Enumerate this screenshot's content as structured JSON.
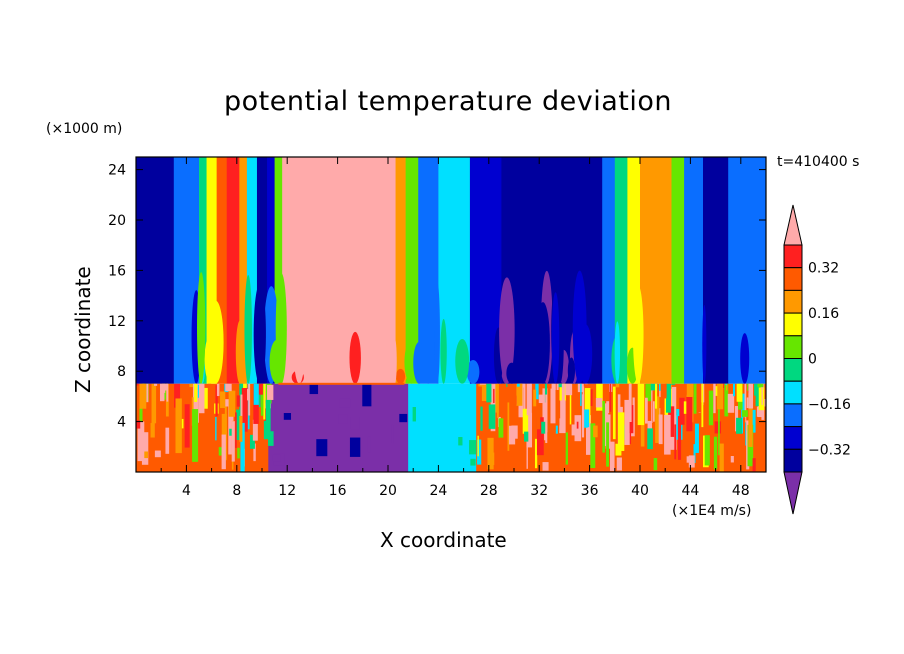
{
  "chart_data": {
    "type": "heatmap",
    "title": "potential temperature deviation",
    "xlabel": "X coordinate",
    "ylabel": "Z coordinate",
    "x_unit_label": "(×1E4 m/s)",
    "y_unit_label": "(×1000 m)",
    "time_label": "t=410400 s",
    "xlim": [
      0,
      50
    ],
    "ylim": [
      0,
      25
    ],
    "x_ticks": [
      4,
      8,
      12,
      16,
      20,
      24,
      28,
      32,
      36,
      40,
      44,
      48
    ],
    "y_ticks": [
      4,
      8,
      12,
      16,
      20,
      24
    ],
    "colorbar": {
      "levels": [
        -0.4,
        -0.32,
        -0.24,
        -0.16,
        -0.08,
        0,
        0.08,
        0.16,
        0.24,
        0.32,
        0.4
      ],
      "tick_labels": [
        "0.32",
        "0.16",
        "0",
        "−0.16",
        "−0.32"
      ],
      "tick_values": [
        0.32,
        0.16,
        0,
        -0.16,
        -0.32
      ],
      "colors": [
        "#7b2fa8",
        "#00009e",
        "#0000d0",
        "#0a6eff",
        "#00e0ff",
        "#00d880",
        "#66e600",
        "#ffff00",
        "#ff9900",
        "#ff5a00",
        "#ff2020",
        "#ffaaaa"
      ]
    },
    "upper_layer_columns": [
      {
        "x0": 0.0,
        "x1": 3.0,
        "v": -0.36
      },
      {
        "x0": 3.0,
        "x1": 5.0,
        "v": -0.2
      },
      {
        "x0": 5.0,
        "x1": 5.6,
        "v": -0.06
      },
      {
        "x0": 5.6,
        "x1": 6.4,
        "v": 0.12
      },
      {
        "x0": 6.4,
        "x1": 7.2,
        "v": 0.3
      },
      {
        "x0": 7.2,
        "x1": 8.2,
        "v": 0.36
      },
      {
        "x0": 8.2,
        "x1": 8.8,
        "v": 0.2
      },
      {
        "x0": 8.8,
        "x1": 9.6,
        "v": -0.1
      },
      {
        "x0": 9.6,
        "x1": 10.4,
        "v": -0.36
      },
      {
        "x0": 10.4,
        "x1": 11.0,
        "v": -0.26
      },
      {
        "x0": 11.0,
        "x1": 11.6,
        "v": 0.06
      },
      {
        "x0": 11.6,
        "x1": 20.6,
        "v": 0.45
      },
      {
        "x0": 20.6,
        "x1": 21.4,
        "v": 0.2
      },
      {
        "x0": 21.4,
        "x1": 22.4,
        "v": 0.0
      },
      {
        "x0": 22.4,
        "x1": 24.0,
        "v": -0.2
      },
      {
        "x0": 24.0,
        "x1": 26.5,
        "v": -0.1
      },
      {
        "x0": 26.5,
        "x1": 29.0,
        "v": -0.3
      },
      {
        "x0": 29.0,
        "x1": 37.0,
        "v": -0.37
      },
      {
        "x0": 37.0,
        "x1": 38.0,
        "v": -0.2
      },
      {
        "x0": 38.0,
        "x1": 39.0,
        "v": -0.04
      },
      {
        "x0": 39.0,
        "x1": 40.0,
        "v": 0.1
      },
      {
        "x0": 40.0,
        "x1": 42.5,
        "v": 0.18
      },
      {
        "x0": 42.5,
        "x1": 43.5,
        "v": 0.02
      },
      {
        "x0": 43.5,
        "x1": 45.0,
        "v": -0.2
      },
      {
        "x0": 45.0,
        "x1": 47.0,
        "v": -0.36
      },
      {
        "x0": 47.0,
        "x1": 50.0,
        "v": -0.2
      }
    ],
    "lower_layer_segments": [
      {
        "x0": 0.0,
        "x1": 10.5,
        "v": 0.3
      },
      {
        "x0": 10.5,
        "x1": 21.6,
        "v": -0.45
      },
      {
        "x0": 21.6,
        "x1": 27.0,
        "v": -0.1
      },
      {
        "x0": 27.0,
        "x1": 50.0,
        "v": 0.3
      }
    ],
    "layer_interface_z": 7.0
  }
}
